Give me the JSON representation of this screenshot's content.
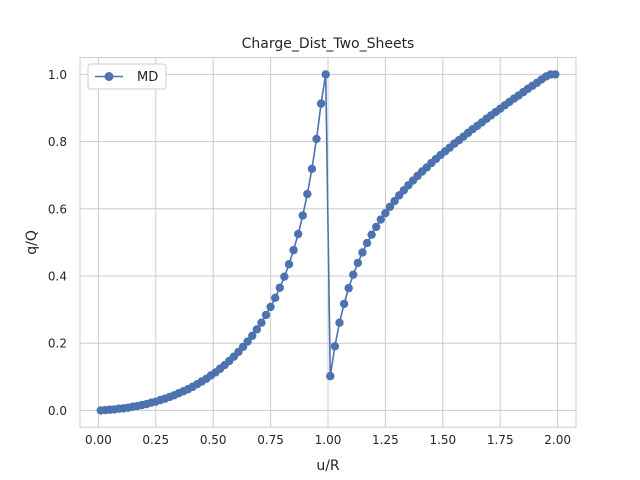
{
  "chart_data": {
    "type": "line",
    "title": "Charge_Dist_Two_Sheets",
    "xlabel": "u/R",
    "ylabel": "q/Q",
    "xlim": [
      -0.08,
      2.08
    ],
    "ylim": [
      -0.05,
      1.05
    ],
    "x_ticks": [
      "0.00",
      "0.25",
      "0.50",
      "0.75",
      "1.00",
      "1.25",
      "1.50",
      "1.75",
      "2.00"
    ],
    "y_ticks": [
      "0.0",
      "0.2",
      "0.4",
      "0.6",
      "0.8",
      "1.0"
    ],
    "grid": true,
    "legend": "top-left",
    "series": [
      {
        "name": "MD",
        "color": "#4c72b0",
        "marker": "circle",
        "x": [
          0.01,
          0.03,
          0.05,
          0.07,
          0.09,
          0.11,
          0.13,
          0.15,
          0.17,
          0.19,
          0.21,
          0.23,
          0.25,
          0.27,
          0.29,
          0.31,
          0.33,
          0.35,
          0.37,
          0.39,
          0.41,
          0.43,
          0.45,
          0.47,
          0.49,
          0.51,
          0.53,
          0.55,
          0.57,
          0.59,
          0.61,
          0.63,
          0.65,
          0.67,
          0.69,
          0.71,
          0.73,
          0.75,
          0.77,
          0.79,
          0.81,
          0.83,
          0.85,
          0.87,
          0.89,
          0.91,
          0.93,
          0.95,
          0.97,
          0.99,
          1.01,
          1.03,
          1.05,
          1.07,
          1.09,
          1.11,
          1.13,
          1.15,
          1.17,
          1.19,
          1.21,
          1.23,
          1.25,
          1.27,
          1.29,
          1.31,
          1.33,
          1.35,
          1.37,
          1.39,
          1.41,
          1.43,
          1.45,
          1.47,
          1.49,
          1.51,
          1.53,
          1.55,
          1.57,
          1.59,
          1.61,
          1.63,
          1.65,
          1.67,
          1.69,
          1.71,
          1.73,
          1.75,
          1.77,
          1.79,
          1.81,
          1.83,
          1.85,
          1.87,
          1.89,
          1.91,
          1.93,
          1.95,
          1.97,
          1.99
        ],
        "y": [
          0.0,
          0.001,
          0.002,
          0.003,
          0.005,
          0.006,
          0.008,
          0.011,
          0.013,
          0.016,
          0.019,
          0.023,
          0.026,
          0.031,
          0.035,
          0.04,
          0.045,
          0.051,
          0.057,
          0.063,
          0.07,
          0.078,
          0.086,
          0.094,
          0.104,
          0.113,
          0.124,
          0.135,
          0.147,
          0.16,
          0.174,
          0.189,
          0.205,
          0.222,
          0.241,
          0.261,
          0.284,
          0.308,
          0.335,
          0.365,
          0.398,
          0.435,
          0.477,
          0.525,
          0.58,
          0.644,
          0.719,
          0.808,
          0.913,
          1.0,
          0.102,
          0.191,
          0.261,
          0.317,
          0.364,
          0.404,
          0.439,
          0.47,
          0.498,
          0.523,
          0.546,
          0.568,
          0.587,
          0.606,
          0.623,
          0.64,
          0.655,
          0.67,
          0.684,
          0.698,
          0.711,
          0.723,
          0.736,
          0.748,
          0.76,
          0.771,
          0.782,
          0.794,
          0.804,
          0.815,
          0.826,
          0.837,
          0.847,
          0.857,
          0.868,
          0.878,
          0.888,
          0.898,
          0.908,
          0.918,
          0.928,
          0.937,
          0.947,
          0.957,
          0.966,
          0.975,
          0.985,
          0.994,
          1.0,
          1.0
        ]
      }
    ]
  }
}
